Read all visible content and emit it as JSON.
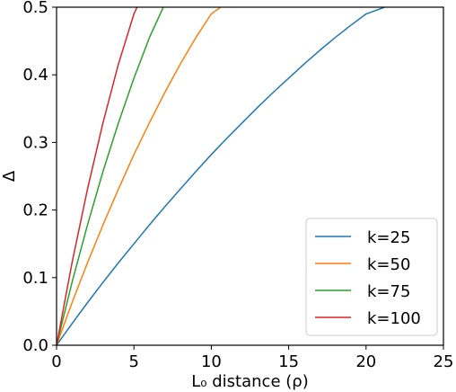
{
  "chart_data": {
    "type": "line",
    "title": "",
    "xlabel": "L₀ distance (ρ)",
    "ylabel": "Δ",
    "xlim": [
      0,
      25
    ],
    "ylim": [
      0,
      0.5
    ],
    "x_ticks": [
      0,
      5,
      10,
      15,
      20,
      25
    ],
    "y_ticks": [
      0.0,
      0.1,
      0.2,
      0.3,
      0.4,
      0.5
    ],
    "x_tick_labels": [
      "0",
      "5",
      "10",
      "15",
      "20",
      "25"
    ],
    "y_tick_labels": [
      "0.0",
      "0.1",
      "0.2",
      "0.3",
      "0.4",
      "0.5"
    ],
    "grid": false,
    "legend_position": "lower-right",
    "series": [
      {
        "name": "k=25",
        "color": "#1f77b4",
        "x": [
          0,
          1,
          2,
          3,
          4,
          5,
          6,
          7,
          8,
          9,
          10,
          11,
          12,
          13,
          14,
          15,
          16,
          17,
          18,
          19,
          20,
          21.2
        ],
        "y": [
          0,
          0.032,
          0.063,
          0.093,
          0.122,
          0.15,
          0.178,
          0.205,
          0.231,
          0.257,
          0.282,
          0.306,
          0.329,
          0.352,
          0.374,
          0.395,
          0.416,
          0.436,
          0.455,
          0.473,
          0.49,
          0.5
        ]
      },
      {
        "name": "k=50",
        "color": "#ff7f0e",
        "x": [
          0,
          1,
          2,
          3,
          4,
          5,
          6,
          7,
          8,
          9,
          10,
          10.6
        ],
        "y": [
          0,
          0.063,
          0.122,
          0.178,
          0.231,
          0.282,
          0.329,
          0.374,
          0.416,
          0.455,
          0.49,
          0.5
        ]
      },
      {
        "name": "k=75",
        "color": "#2ca02c",
        "x": [
          0,
          1,
          2,
          3,
          4,
          5,
          6,
          6.9
        ],
        "y": [
          0,
          0.093,
          0.178,
          0.257,
          0.329,
          0.395,
          0.455,
          0.5
        ]
      },
      {
        "name": "k=100",
        "color": "#d62728",
        "x": [
          0,
          1,
          2,
          3,
          4,
          5,
          5.2
        ],
        "y": [
          0,
          0.122,
          0.231,
          0.329,
          0.416,
          0.49,
          0.5
        ]
      }
    ]
  }
}
